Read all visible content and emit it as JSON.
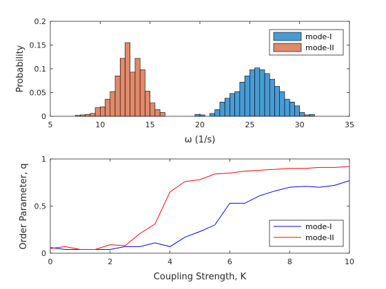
{
  "chart_data": [
    {
      "type": "bar",
      "subtype": "histogram",
      "xlabel": "ω (1/s)",
      "ylabel": "Probability",
      "xlim": [
        5,
        35
      ],
      "ylim": [
        0,
        0.2
      ],
      "xticks": [
        "5",
        "10",
        "15",
        "20",
        "25",
        "30",
        "35"
      ],
      "yticks": [
        "0",
        "0.05",
        "0.1",
        "0.15",
        "0.2"
      ],
      "bin_width": 0.5,
      "legend_position": "top-right",
      "grid": false,
      "series": [
        {
          "name": "mode-I",
          "color": "#4a9bd4",
          "bins": [
            [
              19.5,
              0.004
            ],
            [
              20.0,
              0.003
            ],
            [
              20.5,
              0.0
            ],
            [
              21.0,
              0.006
            ],
            [
              21.5,
              0.014
            ],
            [
              22.0,
              0.03
            ],
            [
              22.5,
              0.038
            ],
            [
              23.0,
              0.048
            ],
            [
              23.5,
              0.052
            ],
            [
              24.0,
              0.072
            ],
            [
              24.5,
              0.085
            ],
            [
              25.0,
              0.098
            ],
            [
              25.5,
              0.102
            ],
            [
              26.0,
              0.098
            ],
            [
              26.5,
              0.09
            ],
            [
              27.0,
              0.078
            ],
            [
              27.5,
              0.063
            ],
            [
              28.0,
              0.052
            ],
            [
              28.5,
              0.036
            ],
            [
              29.0,
              0.03
            ],
            [
              29.5,
              0.022
            ],
            [
              30.0,
              0.008
            ],
            [
              30.5,
              0.003
            ],
            [
              31.0,
              0.004
            ]
          ]
        },
        {
          "name": "mode-II",
          "color": "#e08a6a",
          "bins": [
            [
              7.5,
              0.002
            ],
            [
              8.0,
              0.003
            ],
            [
              8.5,
              0.004
            ],
            [
              9.0,
              0.006
            ],
            [
              9.5,
              0.018
            ],
            [
              10.0,
              0.02
            ],
            [
              10.5,
              0.036
            ],
            [
              11.0,
              0.052
            ],
            [
              11.5,
              0.085
            ],
            [
              12.0,
              0.122
            ],
            [
              12.5,
              0.155
            ],
            [
              13.0,
              0.093
            ],
            [
              13.5,
              0.122
            ],
            [
              14.0,
              0.098
            ],
            [
              14.5,
              0.053
            ],
            [
              15.0,
              0.028
            ],
            [
              15.5,
              0.014
            ],
            [
              16.0,
              0.008
            ]
          ]
        }
      ]
    },
    {
      "type": "line",
      "xlabel": "Coupling Strength, K",
      "ylabel": "Order Parameter, q",
      "xlim": [
        0,
        10
      ],
      "ylim": [
        0,
        1
      ],
      "xticks": [
        "0",
        "2",
        "4",
        "6",
        "8",
        "10"
      ],
      "yticks": [
        "0",
        "0.5",
        "1"
      ],
      "legend_position": "bottom-right",
      "grid": false,
      "x": [
        0,
        0.5,
        1,
        1.5,
        2,
        2.5,
        3,
        3.5,
        4,
        4.5,
        5,
        5.5,
        6,
        6.5,
        7,
        7.5,
        8,
        8.5,
        9,
        9.5,
        10
      ],
      "series": [
        {
          "name": "mode-I",
          "color": "#0000ff",
          "values": [
            0.06,
            0.04,
            0.04,
            0.04,
            0.04,
            0.07,
            0.07,
            0.11,
            0.07,
            0.17,
            0.23,
            0.3,
            0.53,
            0.53,
            0.61,
            0.66,
            0.7,
            0.71,
            0.7,
            0.72,
            0.77
          ]
        },
        {
          "name": "mode-II",
          "color": "#ff0000",
          "values": [
            0.05,
            0.07,
            0.04,
            0.04,
            0.09,
            0.08,
            0.21,
            0.31,
            0.65,
            0.76,
            0.78,
            0.84,
            0.85,
            0.87,
            0.88,
            0.89,
            0.9,
            0.9,
            0.91,
            0.91,
            0.92
          ]
        }
      ]
    }
  ]
}
